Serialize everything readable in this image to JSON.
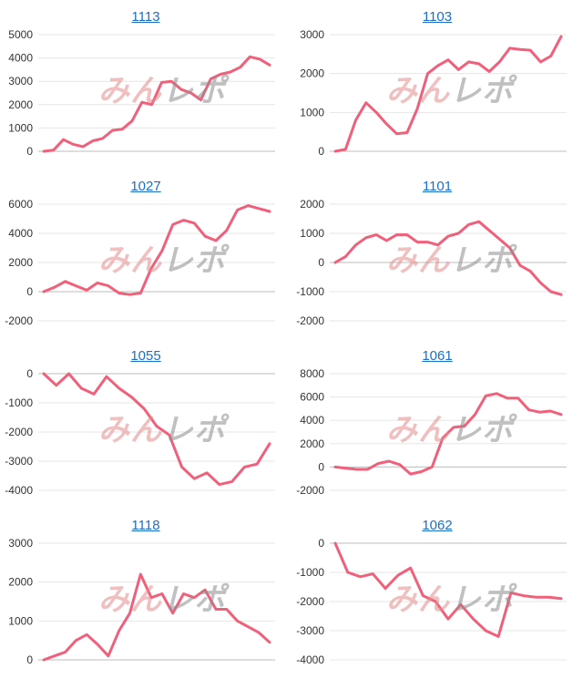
{
  "watermark": {
    "part1": "みん",
    "part2": "レポ"
  },
  "colors": {
    "line": "#f0607a",
    "grid": "#e6e6e6",
    "axis": "#bdbdbd",
    "title": "#1a6fc9"
  },
  "chart_data": [
    {
      "type": "line",
      "title": "1113",
      "ylim": [
        0,
        5000
      ],
      "yticks": [
        0,
        1000,
        2000,
        3000,
        4000,
        5000
      ],
      "values": [
        0,
        50,
        500,
        300,
        200,
        450,
        550,
        900,
        950,
        1300,
        2100,
        2000,
        2950,
        3000,
        2650,
        2500,
        2200,
        3100,
        3300,
        3400,
        3600,
        4050,
        3950,
        3700
      ]
    },
    {
      "type": "line",
      "title": "1103",
      "ylim": [
        0,
        3000
      ],
      "yticks": [
        0,
        1000,
        2000,
        3000
      ],
      "values": [
        0,
        50,
        800,
        1250,
        1000,
        700,
        450,
        480,
        1100,
        2000,
        2200,
        2350,
        2100,
        2300,
        2250,
        2050,
        2300,
        2650,
        2620,
        2600,
        2300,
        2450,
        2950
      ]
    },
    {
      "type": "line",
      "title": "1027",
      "ylim": [
        -2000,
        6000
      ],
      "yticks": [
        -2000,
        0,
        2000,
        4000,
        6000
      ],
      "values": [
        0,
        300,
        700,
        400,
        100,
        600,
        400,
        -100,
        -200,
        -100,
        1600,
        2800,
        4600,
        4900,
        4700,
        3800,
        3500,
        4200,
        5600,
        5900,
        5700,
        5500
      ]
    },
    {
      "type": "line",
      "title": "1101",
      "ylim": [
        -2000,
        2000
      ],
      "yticks": [
        -2000,
        -1000,
        0,
        1000,
        2000
      ],
      "values": [
        0,
        200,
        600,
        850,
        950,
        750,
        950,
        950,
        700,
        700,
        600,
        900,
        1000,
        1300,
        1400,
        1100,
        800,
        500,
        -100,
        -300,
        -700,
        -1000,
        -1100
      ]
    },
    {
      "type": "line",
      "title": "1055",
      "ylim": [
        -4000,
        0
      ],
      "yticks": [
        -4000,
        -3000,
        -2000,
        -1000,
        0
      ],
      "values": [
        0,
        -400,
        0,
        -500,
        -700,
        -100,
        -500,
        -800,
        -1200,
        -1800,
        -2100,
        -3200,
        -3600,
        -3400,
        -3800,
        -3700,
        -3200,
        -3100,
        -2400
      ]
    },
    {
      "type": "line",
      "title": "1061",
      "ylim": [
        -2000,
        8000
      ],
      "yticks": [
        -2000,
        0,
        2000,
        4000,
        6000,
        8000
      ],
      "values": [
        0,
        -100,
        -200,
        -200,
        300,
        500,
        200,
        -600,
        -400,
        0,
        2500,
        3400,
        3500,
        4500,
        6100,
        6300,
        5900,
        5900,
        4900,
        4700,
        4800,
        4500
      ]
    },
    {
      "type": "line",
      "title": "1118",
      "ylim": [
        0,
        3000
      ],
      "yticks": [
        0,
        1000,
        2000,
        3000
      ],
      "values": [
        0,
        100,
        200,
        500,
        650,
        400,
        100,
        750,
        1200,
        2200,
        1600,
        1700,
        1200,
        1700,
        1600,
        1800,
        1300,
        1300,
        1000,
        850,
        700,
        450
      ]
    },
    {
      "type": "line",
      "title": "1062",
      "ylim": [
        -4000,
        0
      ],
      "yticks": [
        -4000,
        -3000,
        -2000,
        -1000,
        0
      ],
      "values": [
        0,
        -1000,
        -1150,
        -1050,
        -1550,
        -1100,
        -850,
        -1800,
        -2000,
        -2600,
        -2100,
        -2600,
        -3000,
        -3200,
        -1700,
        -1800,
        -1850,
        -1850,
        -1900
      ]
    }
  ]
}
